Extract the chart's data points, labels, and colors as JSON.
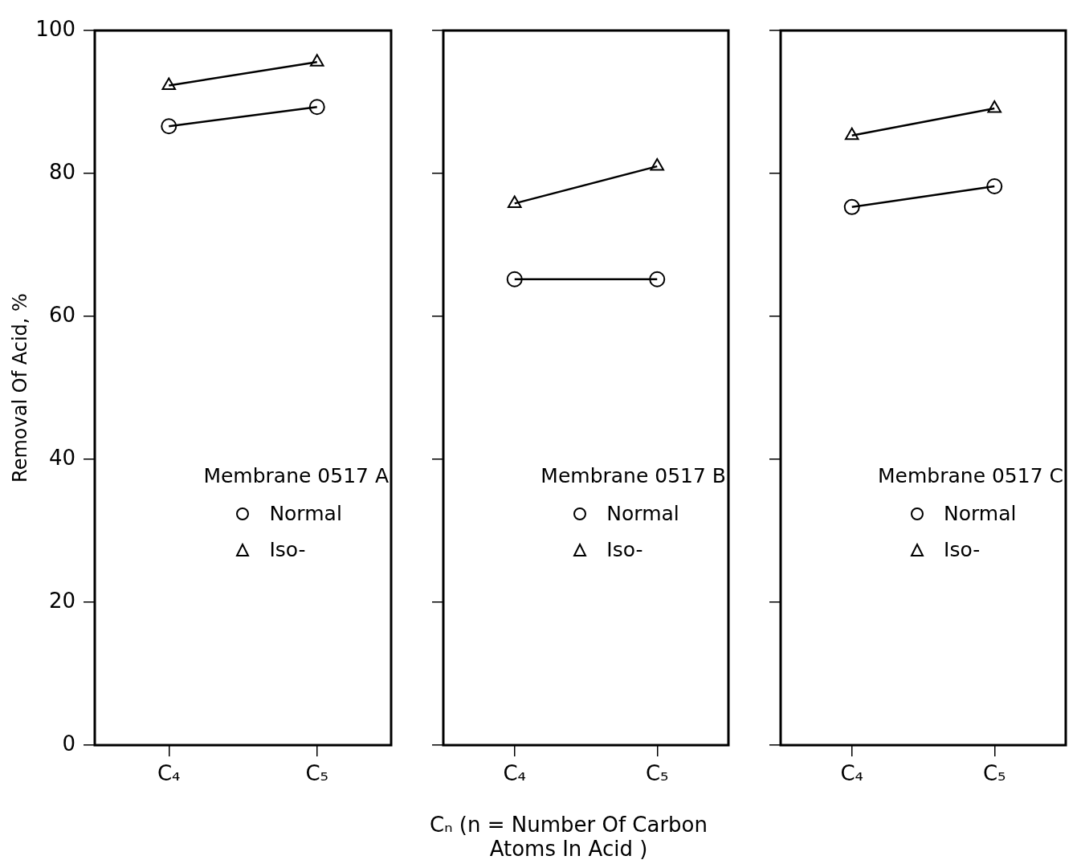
{
  "chart_data": [
    {
      "type": "line",
      "ylabel": "Removal Of Acid, %",
      "legend_title": "Membrane 0517 A",
      "legend": "right",
      "categories": [
        "C₄",
        "C₅"
      ],
      "ylim": [
        0,
        100
      ],
      "yticks": [
        0,
        20,
        40,
        60,
        80,
        100
      ],
      "grid": false,
      "series": [
        {
          "name": "Normal",
          "color": "#000000",
          "marker": "circle",
          "values": [
            86.6,
            89.3
          ]
        },
        {
          "name": "Iso-",
          "color": "#000000",
          "marker": "triangle",
          "values": [
            92.3,
            95.6
          ]
        }
      ]
    },
    {
      "type": "line",
      "xlabel": "Cₙ (n = Number Of Carbon Atoms In Acid )",
      "legend_title": "Membrane 0517 B",
      "legend": "right",
      "categories": [
        "C₄",
        "C₅"
      ],
      "ylim": [
        0,
        100
      ],
      "yticks": [
        0,
        20,
        40,
        60,
        80,
        100
      ],
      "grid": false,
      "tick_labels": "x",
      "series": [
        {
          "name": "Normal",
          "color": "#000000",
          "marker": "circle",
          "values": [
            65.2,
            65.2
          ]
        },
        {
          "name": "Iso-",
          "color": "#000000",
          "marker": "triangle",
          "values": [
            75.8,
            81.0
          ]
        }
      ]
    },
    {
      "type": "line",
      "legend_title": "Membrane 0517 C",
      "legend": "right",
      "categories": [
        "C₄",
        "C₅"
      ],
      "ylim": [
        0,
        100
      ],
      "yticks": [
        0,
        20,
        40,
        60,
        80,
        100
      ],
      "grid": false,
      "tick_labels": "x",
      "series": [
        {
          "name": "Normal",
          "color": "#000000",
          "marker": "circle",
          "values": [
            75.3,
            78.2
          ]
        },
        {
          "name": "Iso-",
          "color": "#000000",
          "marker": "triangle",
          "values": [
            85.3,
            89.1
          ]
        }
      ]
    }
  ]
}
